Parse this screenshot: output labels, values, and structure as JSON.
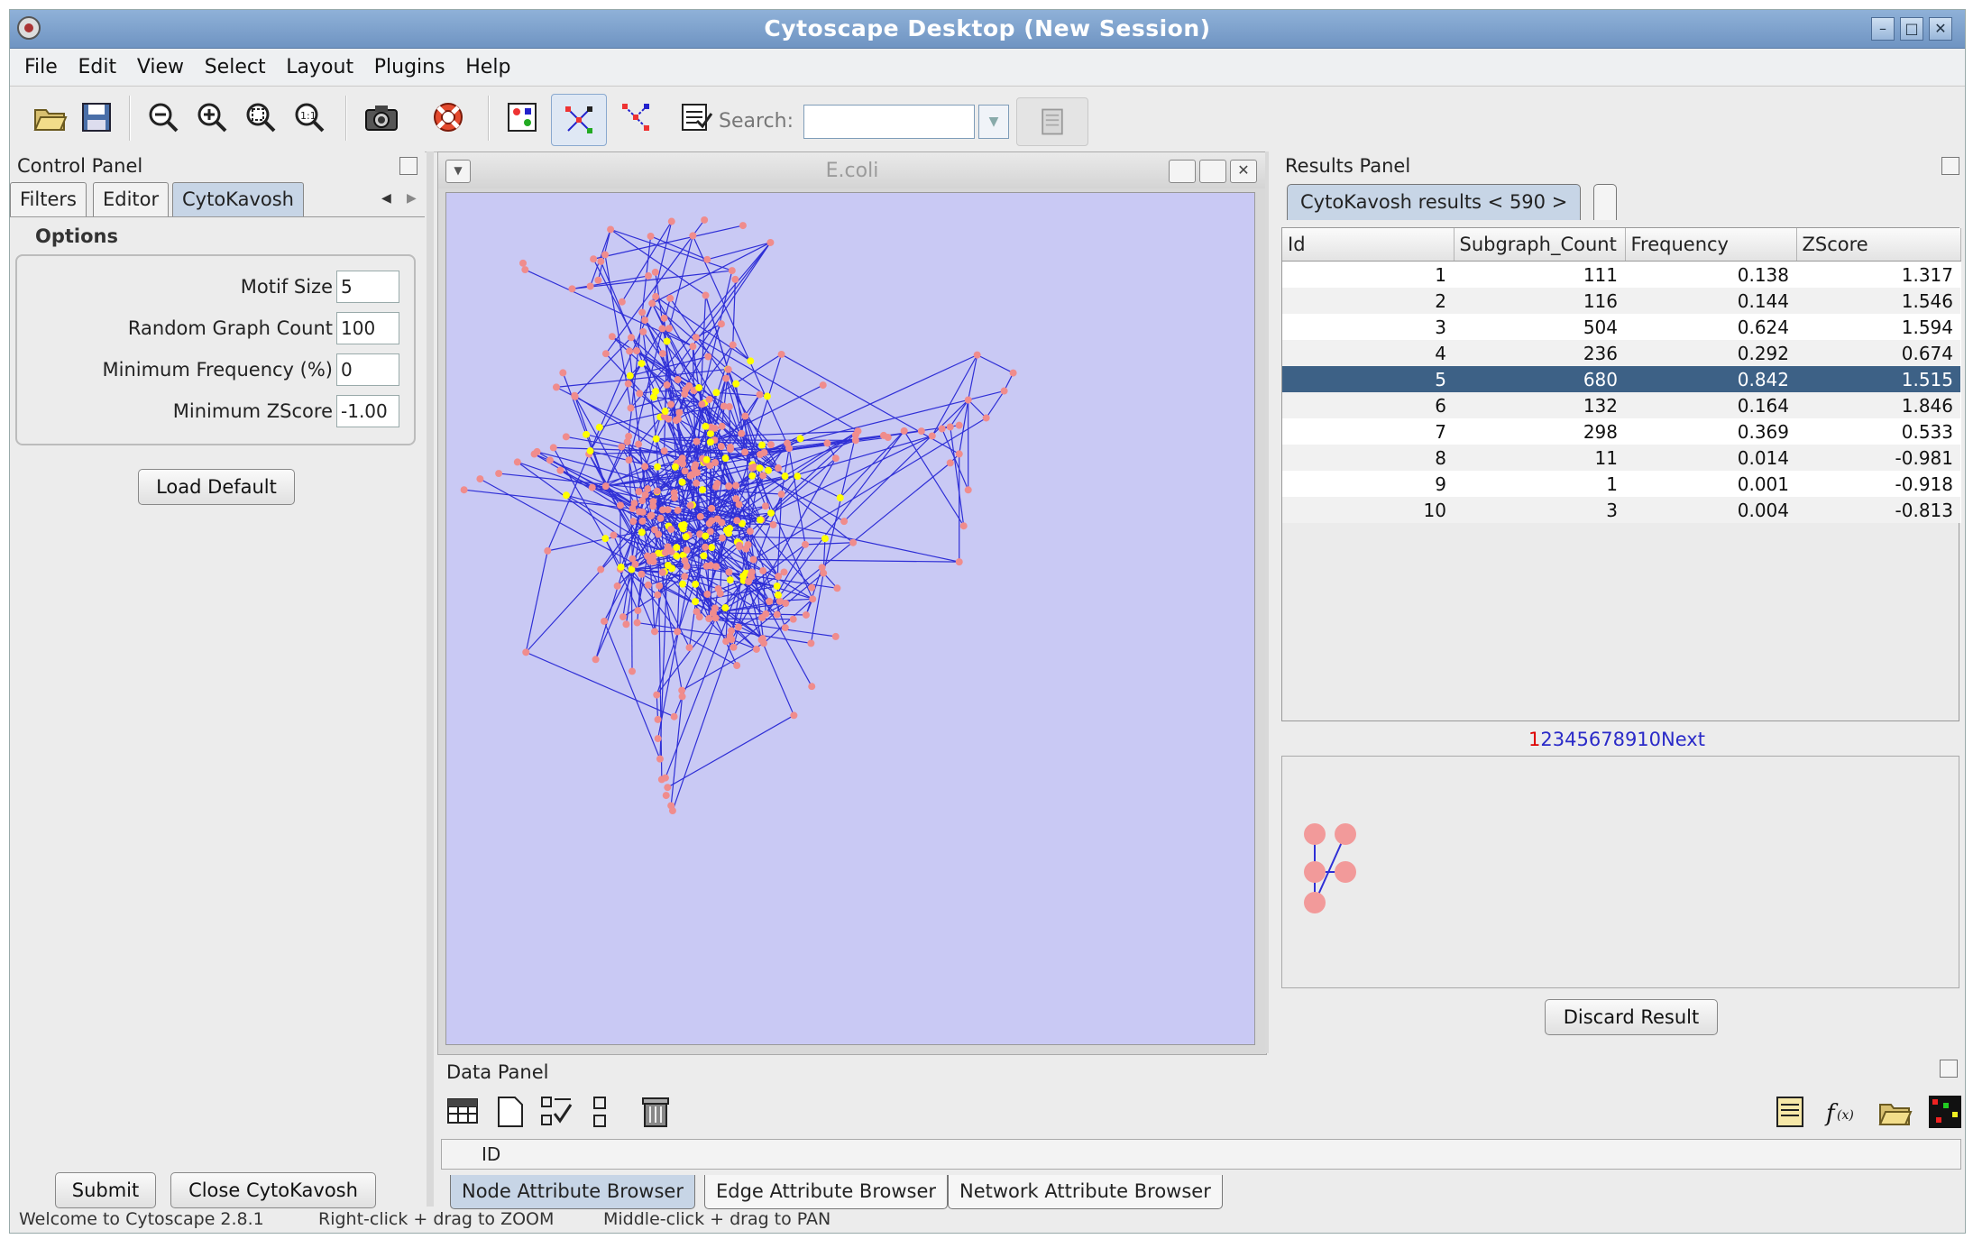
{
  "window": {
    "title": "Cytoscape Desktop (New Session)"
  },
  "menu": [
    "File",
    "Edit",
    "View",
    "Select",
    "Layout",
    "Plugins",
    "Help"
  ],
  "toolbar": {
    "search_label": "Search:",
    "search_value": "",
    "icons": [
      "open-folder-icon",
      "save-icon",
      "zoom-out-icon",
      "zoom-in-icon",
      "zoom-selected-icon",
      "zoom-fit-icon",
      "camera-icon",
      "help-lifebuoy-icon",
      "vizmapper-icon",
      "first-neighbors-icon",
      "hide-selected-icon",
      "results-report-icon"
    ]
  },
  "control_panel": {
    "title": "Control Panel",
    "tabs": [
      "Filters",
      "Editor",
      "CytoKavosh"
    ],
    "active_tab": "CytoKavosh",
    "options_label": "Options",
    "fields": [
      {
        "label": "Motif Size",
        "value": "5"
      },
      {
        "label": "Random Graph Count",
        "value": "100"
      },
      {
        "label": "Minimum Frequency (%)",
        "value": "0"
      },
      {
        "label": "Minimum ZScore",
        "value": "-1.00"
      }
    ],
    "load_default": "Load Default",
    "submit": "Submit",
    "close": "Close CytoKavosh"
  },
  "network": {
    "title": "E.coli"
  },
  "results_panel": {
    "title": "Results Panel",
    "tab_label": "CytoKavosh results < 590 >",
    "columns": [
      "Id",
      "Subgraph_Count",
      "Frequency",
      "ZScore"
    ],
    "rows": [
      [
        "1",
        "111",
        "0.138",
        "1.317"
      ],
      [
        "2",
        "116",
        "0.144",
        "1.546"
      ],
      [
        "3",
        "504",
        "0.624",
        "1.594"
      ],
      [
        "4",
        "236",
        "0.292",
        "0.674"
      ],
      [
        "5",
        "680",
        "0.842",
        "1.515"
      ],
      [
        "6",
        "132",
        "0.164",
        "1.846"
      ],
      [
        "7",
        "298",
        "0.369",
        "0.533"
      ],
      [
        "8",
        "11",
        "0.014",
        "-0.981"
      ],
      [
        "9",
        "1",
        "0.001",
        "-0.918"
      ],
      [
        "10",
        "3",
        "0.004",
        "-0.813"
      ]
    ],
    "selected_row": 4,
    "pager": {
      "current": "1",
      "pages": "2345678910",
      "next": "Next"
    },
    "discard": "Discard Result"
  },
  "data_panel": {
    "title": "Data Panel",
    "id_header": "ID",
    "tabs": [
      "Node Attribute Browser",
      "Edge Attribute Browser",
      "Network Attribute Browser"
    ],
    "active_tab": "Node Attribute Browser"
  },
  "status": {
    "welcome": "Welcome to Cytoscape 2.8.1",
    "zoom_hint": "Right-click + drag to ZOOM",
    "pan_hint": "Middle-click + drag to PAN"
  },
  "colors": {
    "canvas_bg": "#c9c9f4",
    "node_default": "#f08c8c",
    "node_motif": "#ffff00",
    "edge": "#2f2fd6",
    "selection": "#3d6186"
  }
}
